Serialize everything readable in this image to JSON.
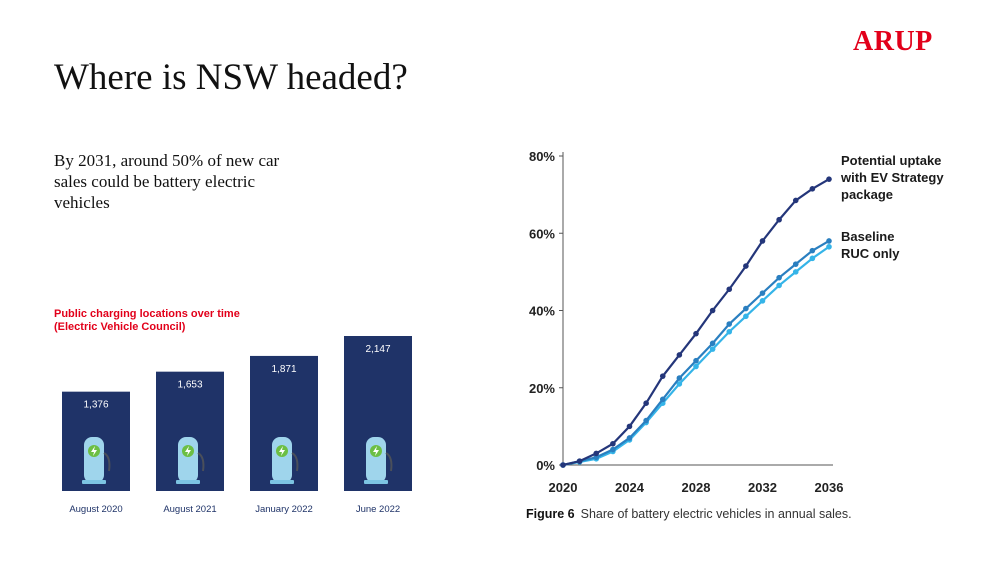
{
  "slide": {
    "logo": "ARUP",
    "title": "Where is NSW headed?",
    "summary": "By 2031, around 50% of new car sales could be battery electric vehicles"
  },
  "chart_data": [
    {
      "type": "bar",
      "title_line1": "Public charging locations over time",
      "title_line2": "(Electric Vehicle Council)",
      "categories": [
        "August 2020",
        "August 2021",
        "January 2022",
        "June 2022"
      ],
      "values": [
        1376,
        1653,
        1871,
        2147
      ],
      "value_labels": [
        "1,376",
        "1,653",
        "1,871",
        "2,147"
      ],
      "bar_color": "#1f3368",
      "icon": "ev-charger-icon",
      "icon_colors": {
        "body": "#9fd5ec",
        "bolt": "#6cbf44"
      }
    },
    {
      "type": "line",
      "figure_label": "Figure 6",
      "caption": "Share of battery electric vehicles in annual sales.",
      "x_ticks": [
        "2020",
        "2024",
        "2028",
        "2032",
        "2036"
      ],
      "y_ticks": [
        "0%",
        "20%",
        "40%",
        "60%",
        "80%"
      ],
      "xlim": [
        2020,
        2036
      ],
      "ylim": [
        0,
        80
      ],
      "series": [
        {
          "name_lines": [
            "Potential uptake",
            "with EV Strategy",
            "package"
          ],
          "color": "#24367a",
          "x": [
            2020,
            2021,
            2022,
            2023,
            2024,
            2025,
            2026,
            2027,
            2028,
            2029,
            2030,
            2031,
            2032,
            2033,
            2034,
            2035,
            2036
          ],
          "y": [
            0,
            1,
            3,
            5.5,
            10,
            16,
            23,
            28.5,
            34,
            40,
            45.5,
            51.5,
            58,
            63.5,
            68.5,
            71.5,
            74
          ]
        },
        {
          "name_lines": [
            "Baseline"
          ],
          "color": "#2a7fc0",
          "x": [
            2020,
            2021,
            2022,
            2023,
            2024,
            2025,
            2026,
            2027,
            2028,
            2029,
            2030,
            2031,
            2032,
            2033,
            2034,
            2035,
            2036
          ],
          "y": [
            0,
            1,
            2,
            4,
            7,
            11.5,
            17,
            22.5,
            27,
            31.5,
            36.5,
            40.5,
            44.5,
            48.5,
            52,
            55.5,
            58
          ]
        },
        {
          "name_lines": [
            "RUC only"
          ],
          "color": "#35b4e8",
          "x": [
            2020,
            2021,
            2022,
            2023,
            2024,
            2025,
            2026,
            2027,
            2028,
            2029,
            2030,
            2031,
            2032,
            2033,
            2034,
            2035,
            2036
          ],
          "y": [
            0,
            0.8,
            1.6,
            3.5,
            6.5,
            11,
            16,
            21,
            25.5,
            30,
            34.5,
            38.5,
            42.5,
            46.5,
            50,
            53.5,
            56.5
          ]
        }
      ]
    }
  ]
}
